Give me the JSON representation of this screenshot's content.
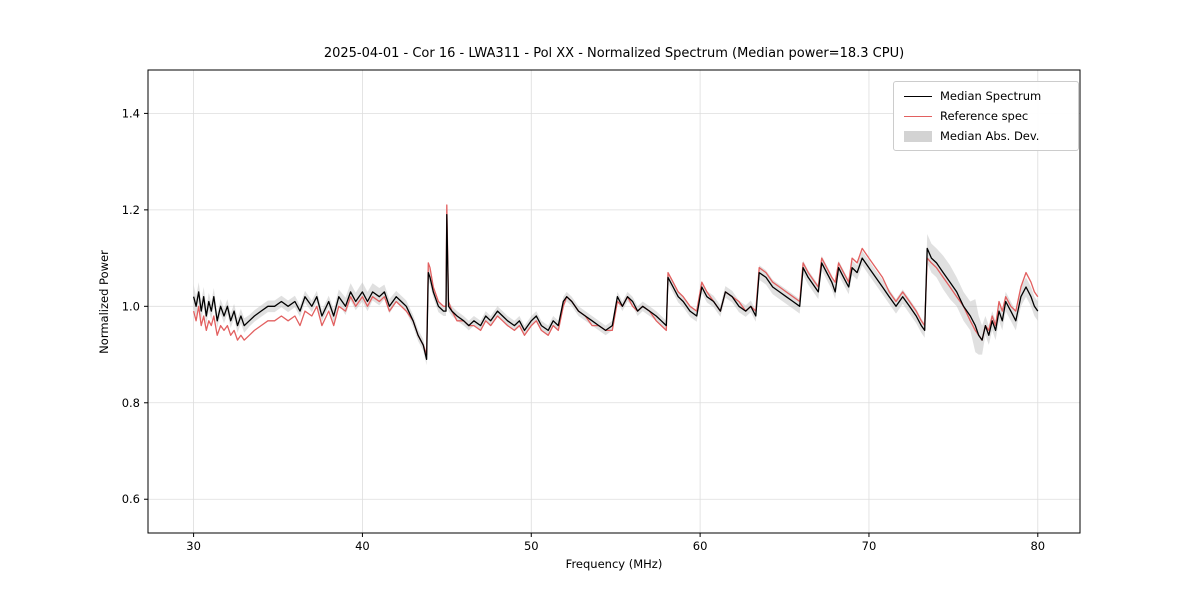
{
  "chart_data": {
    "type": "line",
    "title": "2025-04-01 - Cor 16 - LWA311 - Pol XX - Normalized Spectrum (Median power=18.3 CPU)",
    "xlabel": "Frequency (MHz)",
    "ylabel": "Normalized Power",
    "xlim": [
      27.3,
      82.5
    ],
    "ylim": [
      0.53,
      1.49
    ],
    "xticks": [
      30,
      40,
      50,
      60,
      70,
      80
    ],
    "yticks": [
      0.6,
      0.8,
      1.0,
      1.2,
      1.4
    ],
    "grid": true,
    "legend_position": "upper right",
    "x": [
      30.0,
      30.15,
      30.3,
      30.45,
      30.6,
      30.75,
      30.9,
      31.05,
      31.2,
      31.4,
      31.6,
      31.8,
      32.0,
      32.2,
      32.4,
      32.6,
      32.8,
      33.0,
      33.3,
      33.6,
      34.0,
      34.4,
      34.8,
      35.2,
      35.6,
      36.0,
      36.3,
      36.6,
      37.0,
      37.3,
      37.6,
      38.0,
      38.3,
      38.6,
      39.0,
      39.3,
      39.6,
      40.0,
      40.3,
      40.6,
      41.0,
      41.3,
      41.6,
      42.0,
      42.3,
      42.6,
      43.0,
      43.3,
      43.6,
      43.8,
      43.9,
      44.0,
      44.2,
      44.5,
      44.8,
      44.95,
      45.0,
      45.1,
      45.3,
      45.6,
      46.0,
      46.3,
      46.6,
      47.0,
      47.3,
      47.6,
      48.0,
      48.3,
      48.6,
      49.0,
      49.3,
      49.6,
      50.0,
      50.3,
      50.6,
      51.0,
      51.3,
      51.6,
      51.9,
      52.1,
      52.4,
      52.8,
      53.2,
      53.6,
      54.0,
      54.4,
      54.8,
      55.1,
      55.4,
      55.7,
      56.0,
      56.3,
      56.6,
      57.0,
      57.4,
      57.7,
      58.0,
      58.1,
      58.4,
      58.7,
      59.0,
      59.4,
      59.8,
      60.1,
      60.4,
      60.8,
      61.2,
      61.5,
      61.9,
      62.3,
      62.7,
      63.0,
      63.3,
      63.5,
      63.9,
      64.3,
      64.7,
      65.1,
      65.5,
      65.9,
      66.1,
      66.4,
      66.8,
      67.0,
      67.2,
      67.5,
      67.8,
      68.0,
      68.2,
      68.5,
      68.8,
      69.0,
      69.3,
      69.6,
      70.0,
      70.4,
      70.8,
      71.2,
      71.6,
      72.0,
      72.4,
      72.8,
      73.1,
      73.3,
      73.45,
      73.7,
      74.0,
      74.4,
      74.8,
      75.2,
      75.6,
      76.0,
      76.3,
      76.5,
      76.7,
      76.9,
      77.1,
      77.3,
      77.5,
      77.7,
      77.9,
      78.1,
      78.4,
      78.7,
      79.0,
      79.3,
      79.6,
      79.8,
      80.0
    ],
    "series": [
      {
        "name": "Median Spectrum",
        "color": "#000000",
        "values": [
          1.02,
          1.0,
          1.03,
          0.99,
          1.02,
          0.98,
          1.01,
          0.99,
          1.02,
          0.97,
          1.0,
          0.98,
          1.0,
          0.97,
          0.99,
          0.96,
          0.98,
          0.96,
          0.97,
          0.98,
          0.99,
          1.0,
          1.0,
          1.01,
          1.0,
          1.01,
          0.99,
          1.02,
          1.0,
          1.02,
          0.98,
          1.01,
          0.98,
          1.02,
          1.0,
          1.03,
          1.01,
          1.03,
          1.01,
          1.03,
          1.02,
          1.03,
          1.0,
          1.02,
          1.01,
          1.0,
          0.97,
          0.94,
          0.92,
          0.89,
          1.07,
          1.06,
          1.03,
          1.0,
          0.99,
          0.99,
          1.19,
          1.0,
          0.99,
          0.98,
          0.97,
          0.96,
          0.97,
          0.96,
          0.98,
          0.97,
          0.99,
          0.98,
          0.97,
          0.96,
          0.97,
          0.95,
          0.97,
          0.98,
          0.96,
          0.95,
          0.97,
          0.96,
          1.01,
          1.02,
          1.01,
          0.99,
          0.98,
          0.97,
          0.96,
          0.95,
          0.96,
          1.02,
          1.0,
          1.02,
          1.01,
          0.99,
          1.0,
          0.99,
          0.98,
          0.97,
          0.96,
          1.06,
          1.04,
          1.02,
          1.01,
          0.99,
          0.98,
          1.04,
          1.02,
          1.01,
          0.99,
          1.03,
          1.02,
          1.0,
          0.99,
          1.0,
          0.98,
          1.07,
          1.06,
          1.04,
          1.03,
          1.02,
          1.01,
          1.0,
          1.08,
          1.06,
          1.04,
          1.03,
          1.09,
          1.07,
          1.05,
          1.03,
          1.08,
          1.06,
          1.04,
          1.08,
          1.07,
          1.1,
          1.08,
          1.06,
          1.04,
          1.02,
          1.0,
          1.02,
          1.0,
          0.98,
          0.96,
          0.95,
          1.12,
          1.1,
          1.09,
          1.07,
          1.05,
          1.03,
          1.0,
          0.98,
          0.96,
          0.94,
          0.93,
          0.96,
          0.94,
          0.97,
          0.95,
          0.99,
          0.97,
          1.01,
          0.99,
          0.97,
          1.02,
          1.04,
          1.02,
          1.0,
          0.99
        ]
      },
      {
        "name": "Reference spec",
        "color": "#e26060",
        "values": [
          0.99,
          0.97,
          1.0,
          0.96,
          0.98,
          0.95,
          0.97,
          0.96,
          0.98,
          0.94,
          0.96,
          0.95,
          0.96,
          0.94,
          0.95,
          0.93,
          0.94,
          0.93,
          0.94,
          0.95,
          0.96,
          0.97,
          0.97,
          0.98,
          0.97,
          0.98,
          0.96,
          0.99,
          0.98,
          1.0,
          0.96,
          0.99,
          0.96,
          1.0,
          0.99,
          1.02,
          1.0,
          1.02,
          1.0,
          1.02,
          1.01,
          1.02,
          0.99,
          1.01,
          1.0,
          0.99,
          0.97,
          0.94,
          0.92,
          0.9,
          1.09,
          1.08,
          1.04,
          1.01,
          1.0,
          1.0,
          1.21,
          1.01,
          0.99,
          0.97,
          0.97,
          0.96,
          0.96,
          0.95,
          0.97,
          0.96,
          0.98,
          0.97,
          0.96,
          0.95,
          0.96,
          0.94,
          0.96,
          0.97,
          0.95,
          0.94,
          0.96,
          0.95,
          1.0,
          1.02,
          1.01,
          0.99,
          0.98,
          0.96,
          0.96,
          0.95,
          0.95,
          1.01,
          1.0,
          1.02,
          1.0,
          0.99,
          1.0,
          0.99,
          0.97,
          0.96,
          0.95,
          1.07,
          1.05,
          1.03,
          1.02,
          1.0,
          0.99,
          1.05,
          1.03,
          1.01,
          0.99,
          1.03,
          1.02,
          1.01,
          0.99,
          1.0,
          0.99,
          1.08,
          1.07,
          1.05,
          1.04,
          1.03,
          1.02,
          1.01,
          1.09,
          1.07,
          1.05,
          1.04,
          1.1,
          1.08,
          1.06,
          1.05,
          1.09,
          1.07,
          1.05,
          1.1,
          1.09,
          1.12,
          1.1,
          1.08,
          1.06,
          1.03,
          1.01,
          1.03,
          1.01,
          0.99,
          0.97,
          0.96,
          1.1,
          1.09,
          1.08,
          1.06,
          1.04,
          1.02,
          1.0,
          0.97,
          0.95,
          0.94,
          0.93,
          0.96,
          0.95,
          0.98,
          0.96,
          1.01,
          0.99,
          1.02,
          1.0,
          0.99,
          1.04,
          1.07,
          1.05,
          1.03,
          1.02
        ]
      }
    ],
    "band": {
      "name": "Median Abs. Dev.",
      "color": "#bbbbbb",
      "around_series": "Median Spectrum",
      "mad": [
        0.025,
        0.02,
        0.02,
        0.02,
        0.02,
        0.018,
        0.018,
        0.018,
        0.018,
        0.015,
        0.015,
        0.015,
        0.015,
        0.015,
        0.015,
        0.015,
        0.015,
        0.015,
        0.012,
        0.012,
        0.012,
        0.012,
        0.012,
        0.012,
        0.012,
        0.012,
        0.012,
        0.012,
        0.012,
        0.012,
        0.012,
        0.012,
        0.015,
        0.015,
        0.018,
        0.018,
        0.018,
        0.02,
        0.02,
        0.018,
        0.018,
        0.015,
        0.015,
        0.012,
        0.012,
        0.012,
        0.012,
        0.012,
        0.012,
        0.012,
        0.015,
        0.015,
        0.012,
        0.012,
        0.01,
        0.01,
        0.012,
        0.01,
        0.01,
        0.01,
        0.01,
        0.01,
        0.01,
        0.01,
        0.01,
        0.01,
        0.01,
        0.01,
        0.01,
        0.01,
        0.01,
        0.01,
        0.01,
        0.01,
        0.01,
        0.01,
        0.01,
        0.01,
        0.01,
        0.01,
        0.01,
        0.01,
        0.01,
        0.01,
        0.01,
        0.01,
        0.01,
        0.01,
        0.01,
        0.01,
        0.01,
        0.01,
        0.01,
        0.01,
        0.01,
        0.01,
        0.01,
        0.012,
        0.012,
        0.012,
        0.012,
        0.012,
        0.012,
        0.012,
        0.012,
        0.012,
        0.012,
        0.012,
        0.012,
        0.012,
        0.012,
        0.012,
        0.012,
        0.015,
        0.015,
        0.015,
        0.015,
        0.015,
        0.015,
        0.015,
        0.015,
        0.015,
        0.015,
        0.015,
        0.015,
        0.015,
        0.015,
        0.015,
        0.015,
        0.015,
        0.015,
        0.015,
        0.015,
        0.015,
        0.015,
        0.015,
        0.015,
        0.015,
        0.015,
        0.015,
        0.015,
        0.015,
        0.015,
        0.015,
        0.03,
        0.03,
        0.03,
        0.035,
        0.035,
        0.03,
        0.03,
        0.03,
        0.055,
        0.04,
        0.03,
        0.02,
        0.02,
        0.02,
        0.02,
        0.02,
        0.02,
        0.02,
        0.02,
        0.02,
        0.02,
        0.02,
        0.02,
        0.02,
        0.02
      ]
    },
    "style": {
      "grid_color": "#dddddd",
      "axis_color": "#000000",
      "tick_label_color": "#000000",
      "band_opacity": 0.45
    }
  }
}
